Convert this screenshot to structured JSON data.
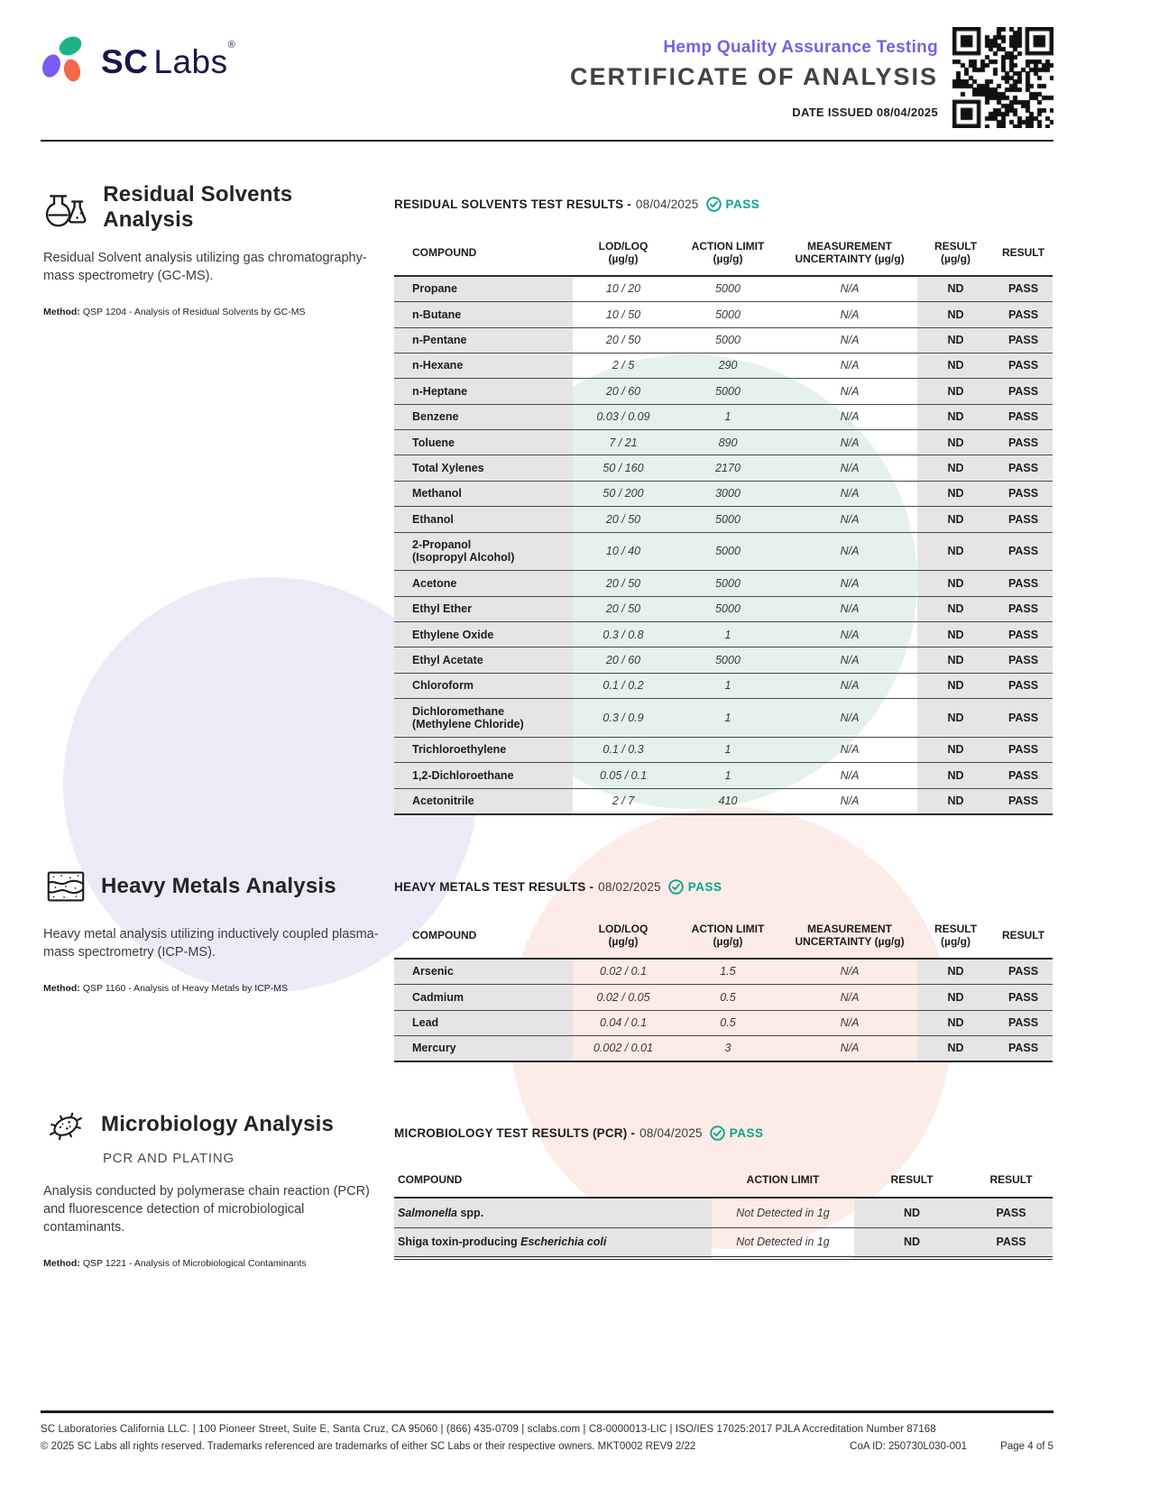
{
  "brand": {
    "sc": "SC",
    "labs": "Labs",
    "reg": "®"
  },
  "header": {
    "program": "Hemp Quality Assurance Testing",
    "title": "CERTIFICATE OF ANALYSIS",
    "date_issued": "DATE ISSUED 08/04/2025"
  },
  "colors": {
    "accent_purple": "#7a5fe0",
    "pass_teal": "#0ba58c",
    "logo_purple": "#7b5bf5",
    "logo_green": "#1cb487",
    "logo_coral": "#f4684b"
  },
  "residual_solvents": {
    "title": "Residual Solvents Analysis",
    "description": "Residual Solvent analysis utilizing gas chromatography-mass spectrometry (GC-MS).",
    "method_label": "Method:",
    "method": "QSP 1204 - Analysis of Residual Solvents by GC-MS",
    "results_title": "RESIDUAL SOLVENTS TEST RESULTS -",
    "results_date": "08/04/2025",
    "pass_label": "PASS",
    "table": {
      "columns": [
        {
          "line1": "COMPOUND"
        },
        {
          "line1": "LOD/LOQ",
          "line2": "(µg/g)"
        },
        {
          "line1": "ACTION LIMIT",
          "line2": "(µg/g)"
        },
        {
          "line1": "MEASUREMENT",
          "line2": "UNCERTAINTY (µg/g)"
        },
        {
          "line1": "RESULT",
          "line2": "(µg/g)"
        },
        {
          "line1": "RESULT"
        }
      ],
      "rows": [
        {
          "compound": "Propane",
          "lod_loq": "10 / 20",
          "action_limit": "5000",
          "uncertainty": "N/A",
          "result": "ND",
          "status": "PASS"
        },
        {
          "compound": "n-Butane",
          "lod_loq": "10 / 50",
          "action_limit": "5000",
          "uncertainty": "N/A",
          "result": "ND",
          "status": "PASS"
        },
        {
          "compound": "n-Pentane",
          "lod_loq": "20 / 50",
          "action_limit": "5000",
          "uncertainty": "N/A",
          "result": "ND",
          "status": "PASS"
        },
        {
          "compound": "n-Hexane",
          "lod_loq": "2 / 5",
          "action_limit": "290",
          "uncertainty": "N/A",
          "result": "ND",
          "status": "PASS"
        },
        {
          "compound": "n-Heptane",
          "lod_loq": "20 / 60",
          "action_limit": "5000",
          "uncertainty": "N/A",
          "result": "ND",
          "status": "PASS"
        },
        {
          "compound": "Benzene",
          "lod_loq": "0.03 / 0.09",
          "action_limit": "1",
          "uncertainty": "N/A",
          "result": "ND",
          "status": "PASS"
        },
        {
          "compound": "Toluene",
          "lod_loq": "7 / 21",
          "action_limit": "890",
          "uncertainty": "N/A",
          "result": "ND",
          "status": "PASS"
        },
        {
          "compound": "Total Xylenes",
          "lod_loq": "50 / 160",
          "action_limit": "2170",
          "uncertainty": "N/A",
          "result": "ND",
          "status": "PASS"
        },
        {
          "compound": "Methanol",
          "lod_loq": "50 / 200",
          "action_limit": "3000",
          "uncertainty": "N/A",
          "result": "ND",
          "status": "PASS"
        },
        {
          "compound": "Ethanol",
          "lod_loq": "20 / 50",
          "action_limit": "5000",
          "uncertainty": "N/A",
          "result": "ND",
          "status": "PASS"
        },
        {
          "compound": "2-Propanol",
          "compound2": "(Isopropyl Alcohol)",
          "lod_loq": "10 / 40",
          "action_limit": "5000",
          "uncertainty": "N/A",
          "result": "ND",
          "status": "PASS"
        },
        {
          "compound": "Acetone",
          "lod_loq": "20 / 50",
          "action_limit": "5000",
          "uncertainty": "N/A",
          "result": "ND",
          "status": "PASS"
        },
        {
          "compound": "Ethyl Ether",
          "lod_loq": "20 / 50",
          "action_limit": "5000",
          "uncertainty": "N/A",
          "result": "ND",
          "status": "PASS"
        },
        {
          "compound": "Ethylene Oxide",
          "lod_loq": "0.3 / 0.8",
          "action_limit": "1",
          "uncertainty": "N/A",
          "result": "ND",
          "status": "PASS"
        },
        {
          "compound": "Ethyl Acetate",
          "lod_loq": "20 / 60",
          "action_limit": "5000",
          "uncertainty": "N/A",
          "result": "ND",
          "status": "PASS"
        },
        {
          "compound": "Chloroform",
          "lod_loq": "0.1 / 0.2",
          "action_limit": "1",
          "uncertainty": "N/A",
          "result": "ND",
          "status": "PASS"
        },
        {
          "compound": "Dichloromethane",
          "compound2": "(Methylene Chloride)",
          "lod_loq": "0.3 / 0.9",
          "action_limit": "1",
          "uncertainty": "N/A",
          "result": "ND",
          "status": "PASS"
        },
        {
          "compound": "Trichloroethylene",
          "lod_loq": "0.1 / 0.3",
          "action_limit": "1",
          "uncertainty": "N/A",
          "result": "ND",
          "status": "PASS"
        },
        {
          "compound": "1,2-Dichloroethane",
          "lod_loq": "0.05 / 0.1",
          "action_limit": "1",
          "uncertainty": "N/A",
          "result": "ND",
          "status": "PASS"
        },
        {
          "compound": "Acetonitrile",
          "lod_loq": "2 / 7",
          "action_limit": "410",
          "uncertainty": "N/A",
          "result": "ND",
          "status": "PASS"
        }
      ]
    }
  },
  "heavy_metals": {
    "title": "Heavy Metals Analysis",
    "description": "Heavy metal analysis utilizing inductively coupled plasma-mass spectrometry (ICP-MS).",
    "method_label": "Method:",
    "method": "QSP 1160 - Analysis of Heavy Metals by ICP-MS",
    "results_title": "HEAVY METALS TEST RESULTS -",
    "results_date": "08/02/2025",
    "pass_label": "PASS",
    "table": {
      "columns": [
        {
          "line1": "COMPOUND"
        },
        {
          "line1": "LOD/LOQ",
          "line2": "(µg/g)"
        },
        {
          "line1": "ACTION LIMIT",
          "line2": "(µg/g)"
        },
        {
          "line1": "MEASUREMENT",
          "line2": "UNCERTAINTY (µg/g)"
        },
        {
          "line1": "RESULT",
          "line2": "(µg/g)"
        },
        {
          "line1": "RESULT"
        }
      ],
      "rows": [
        {
          "compound": "Arsenic",
          "lod_loq": "0.02 / 0.1",
          "action_limit": "1.5",
          "uncertainty": "N/A",
          "result": "ND",
          "status": "PASS"
        },
        {
          "compound": "Cadmium",
          "lod_loq": "0.02 / 0.05",
          "action_limit": "0.5",
          "uncertainty": "N/A",
          "result": "ND",
          "status": "PASS"
        },
        {
          "compound": "Lead",
          "lod_loq": "0.04 / 0.1",
          "action_limit": "0.5",
          "uncertainty": "N/A",
          "result": "ND",
          "status": "PASS"
        },
        {
          "compound": "Mercury",
          "lod_loq": "0.002 / 0.01",
          "action_limit": "3",
          "uncertainty": "N/A",
          "result": "ND",
          "status": "PASS"
        }
      ]
    }
  },
  "microbiology": {
    "title": "Microbiology Analysis",
    "subtitle": "PCR AND PLATING",
    "description": "Analysis conducted by polymerase chain reaction (PCR) and fluorescence detection of microbiological contaminants.",
    "method_label": "Method:",
    "method": "QSP 1221 - Analysis of Microbiological Contaminants",
    "results_title": "MICROBIOLOGY TEST RESULTS (PCR) -",
    "results_date": "08/04/2025",
    "pass_label": "PASS",
    "table": {
      "columns": [
        {
          "line1": "COMPOUND"
        },
        {
          "line1": "ACTION LIMIT"
        },
        {
          "line1": "RESULT"
        },
        {
          "line1": "RESULT"
        }
      ],
      "rows": [
        {
          "compound_parts": [
            {
              "text": "Salmonella",
              "italic": true
            },
            {
              "text": " spp.",
              "italic": false
            }
          ],
          "action_limit": "Not Detected in 1g",
          "result": "ND",
          "status": "PASS"
        },
        {
          "compound_parts": [
            {
              "text": "Shiga toxin-producing ",
              "italic": false
            },
            {
              "text": "Escherichia coli",
              "italic": true
            }
          ],
          "action_limit": "Not Detected in 1g",
          "result": "ND",
          "status": "PASS"
        }
      ]
    }
  },
  "footer": {
    "line1": "SC Laboratories California LLC. | 100 Pioneer Street, Suite E, Santa Cruz, CA 95060 | (866) 435-0709 | sclabs.com | C8-0000013-LIC | ISO/IES 17025:2017 PJLA Accreditation Number 87168",
    "line2": "© 2025 SC Labs all rights reserved. Trademarks referenced are trademarks of either SC Labs or their respective owners. MKT0002 REV9 2/22",
    "coa_id": "CoA ID: 250730L030-001",
    "page": "Page 4 of 5"
  }
}
